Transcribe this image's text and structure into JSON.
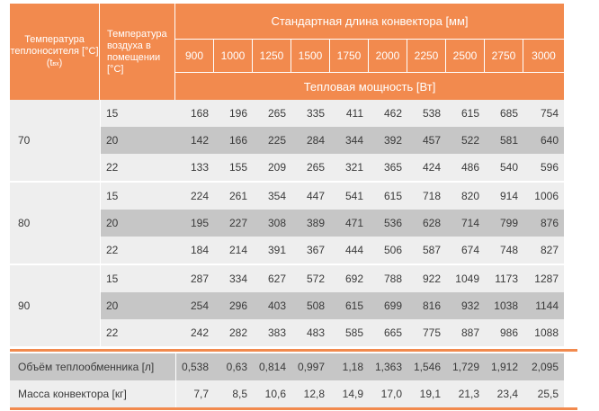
{
  "header": {
    "carrier_label": "Температура теплоносителя [°C] (t",
    "carrier_sub": "вх",
    "carrier_close": ")",
    "air_label": "Температура воздуха в помещении [°C]",
    "length_title": "Стандартная длина конвектора [мм]",
    "power_title": "Тепловая мощность [Вт]",
    "lengths": [
      "900",
      "1000",
      "1250",
      "1500",
      "1750",
      "2000",
      "2250",
      "2500",
      "2750",
      "3000"
    ]
  },
  "groups": [
    {
      "carrier": "70",
      "rows": [
        {
          "air": "15",
          "values": [
            "168",
            "196",
            "265",
            "335",
            "411",
            "462",
            "538",
            "615",
            "685",
            "754"
          ]
        },
        {
          "air": "20",
          "values": [
            "142",
            "166",
            "225",
            "284",
            "344",
            "392",
            "457",
            "522",
            "581",
            "640"
          ]
        },
        {
          "air": "22",
          "values": [
            "133",
            "155",
            "209",
            "265",
            "321",
            "365",
            "424",
            "486",
            "540",
            "596"
          ]
        }
      ]
    },
    {
      "carrier": "80",
      "rows": [
        {
          "air": "15",
          "values": [
            "224",
            "261",
            "354",
            "447",
            "541",
            "615",
            "718",
            "820",
            "914",
            "1006"
          ]
        },
        {
          "air": "20",
          "values": [
            "195",
            "227",
            "308",
            "389",
            "471",
            "536",
            "628",
            "714",
            "799",
            "876"
          ]
        },
        {
          "air": "22",
          "values": [
            "184",
            "214",
            "391",
            "367",
            "444",
            "506",
            "587",
            "674",
            "748",
            "827"
          ]
        }
      ]
    },
    {
      "carrier": "90",
      "rows": [
        {
          "air": "15",
          "values": [
            "287",
            "334",
            "627",
            "572",
            "692",
            "788",
            "922",
            "1049",
            "1173",
            "1287"
          ]
        },
        {
          "air": "20",
          "values": [
            "254",
            "296",
            "403",
            "508",
            "615",
            "699",
            "816",
            "932",
            "1038",
            "1144"
          ]
        },
        {
          "air": "22",
          "values": [
            "242",
            "282",
            "383",
            "483",
            "585",
            "665",
            "775",
            "887",
            "986",
            "1088"
          ]
        }
      ]
    }
  ],
  "footer": [
    {
      "label": "Объём теплообменника [л]",
      "values": [
        "0,538",
        "0,63",
        "0,814",
        "0,997",
        "1,18",
        "1,363",
        "1,546",
        "1,729",
        "1,912",
        "2,095"
      ]
    },
    {
      "label": "Масса конвектора [кг]",
      "values": [
        "7,7",
        "8,5",
        "10,6",
        "12,8",
        "14,9",
        "17,0",
        "19,1",
        "21,3",
        "23,4",
        "25,5"
      ]
    }
  ],
  "colors": {
    "accent": "#f28a4e",
    "row_light": "#eeeeee",
    "row_dark": "#c6c6c6",
    "text": "#3a3a3a"
  }
}
